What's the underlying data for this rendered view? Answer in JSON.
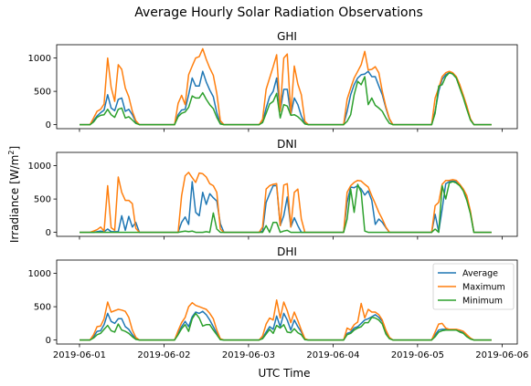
{
  "figure": {
    "title": "Average Hourly Solar Radiation Observations",
    "xlabel": "UTC Time",
    "ylabel": "Irradiance [W/m",
    "ylabel_sup": "2",
    "ylabel_close": "]"
  },
  "chart_data": [
    {
      "type": "line",
      "title": "GHI",
      "x_start": "2019-06-01",
      "x_step_hours": 1,
      "xlim": [
        "2019-06-01",
        "2019-06-06"
      ],
      "ylim": [
        0,
        1200
      ],
      "yticks": [
        0,
        500,
        1000
      ],
      "xticks": [
        "2019-06-01",
        "2019-06-02",
        "2019-06-03",
        "2019-06-04",
        "2019-06-05",
        "2019-06-06"
      ],
      "series": [
        {
          "name": "Average",
          "color": "#1f77b4",
          "values": [
            0,
            0,
            0,
            0,
            60,
            130,
            180,
            220,
            450,
            250,
            210,
            380,
            400,
            200,
            230,
            150,
            40,
            0,
            0,
            0,
            0,
            0,
            0,
            0,
            0,
            0,
            0,
            0,
            150,
            220,
            230,
            450,
            700,
            580,
            580,
            800,
            640,
            520,
            420,
            180,
            20,
            0,
            0,
            0,
            0,
            0,
            0,
            0,
            0,
            0,
            0,
            0,
            40,
            250,
            420,
            500,
            700,
            200,
            530,
            530,
            150,
            400,
            300,
            130,
            20,
            0,
            0,
            0,
            0,
            0,
            0,
            0,
            0,
            0,
            0,
            0,
            200,
            450,
            600,
            700,
            750,
            760,
            800,
            720,
            720,
            580,
            450,
            250,
            80,
            0,
            0,
            0,
            0,
            0,
            0,
            0,
            0,
            0,
            0,
            0,
            0,
            200,
            500,
            680,
            750,
            780,
            760,
            700,
            560,
            420,
            250,
            80,
            0,
            0,
            0,
            0,
            0,
            0
          ]
        },
        {
          "name": "Maximum",
          "color": "#ff7f0e",
          "values": [
            0,
            0,
            0,
            0,
            100,
            200,
            230,
            310,
            1000,
            560,
            350,
            900,
            830,
            550,
            420,
            200,
            60,
            0,
            0,
            0,
            0,
            0,
            0,
            0,
            0,
            0,
            0,
            0,
            320,
            440,
            300,
            750,
            880,
            1000,
            1020,
            1140,
            980,
            850,
            740,
            470,
            60,
            0,
            0,
            0,
            0,
            0,
            0,
            0,
            0,
            0,
            0,
            0,
            80,
            530,
            700,
            870,
            1050,
            200,
            1000,
            1060,
            160,
            880,
            610,
            450,
            50,
            0,
            0,
            0,
            0,
            0,
            0,
            0,
            0,
            0,
            0,
            0,
            380,
            550,
            700,
            800,
            900,
            1100,
            820,
            830,
            870,
            780,
            500,
            270,
            90,
            0,
            0,
            0,
            0,
            0,
            0,
            0,
            0,
            0,
            0,
            0,
            0,
            400,
            550,
            720,
            780,
            800,
            780,
            720,
            600,
            440,
            280,
            90,
            0,
            0,
            0,
            0,
            0,
            0
          ]
        },
        {
          "name": "Minimum",
          "color": "#2ca02c",
          "values": [
            0,
            0,
            0,
            0,
            40,
            110,
            140,
            150,
            230,
            150,
            110,
            230,
            250,
            100,
            120,
            70,
            20,
            0,
            0,
            0,
            0,
            0,
            0,
            0,
            0,
            0,
            0,
            0,
            120,
            170,
            190,
            260,
            430,
            400,
            400,
            480,
            380,
            300,
            240,
            110,
            10,
            0,
            0,
            0,
            0,
            0,
            0,
            0,
            0,
            0,
            0,
            0,
            30,
            170,
            310,
            350,
            470,
            100,
            300,
            280,
            140,
            150,
            120,
            70,
            10,
            0,
            0,
            0,
            0,
            0,
            0,
            0,
            0,
            0,
            0,
            0,
            50,
            150,
            450,
            650,
            600,
            720,
            300,
            400,
            290,
            250,
            200,
            100,
            20,
            0,
            0,
            0,
            0,
            0,
            0,
            0,
            0,
            0,
            0,
            0,
            0,
            170,
            580,
            600,
            720,
            780,
            760,
            700,
            550,
            400,
            230,
            70,
            0,
            0,
            0,
            0,
            0,
            0
          ]
        }
      ]
    },
    {
      "type": "line",
      "title": "DNI",
      "x_start": "2019-06-01",
      "x_step_hours": 1,
      "xlim": [
        "2019-06-01",
        "2019-06-06"
      ],
      "ylim": [
        0,
        1200
      ],
      "yticks": [
        0,
        500,
        1000
      ],
      "xticks": [
        "2019-06-01",
        "2019-06-02",
        "2019-06-03",
        "2019-06-04",
        "2019-06-05",
        "2019-06-06"
      ],
      "series": [
        {
          "name": "Average",
          "color": "#1f77b4",
          "values": [
            0,
            0,
            0,
            0,
            0,
            10,
            20,
            10,
            50,
            10,
            10,
            10,
            250,
            30,
            240,
            80,
            150,
            0,
            0,
            0,
            0,
            0,
            0,
            0,
            0,
            0,
            0,
            0,
            0,
            150,
            230,
            120,
            760,
            300,
            250,
            600,
            420,
            580,
            520,
            470,
            130,
            0,
            0,
            0,
            0,
            0,
            0,
            0,
            0,
            0,
            0,
            0,
            20,
            450,
            580,
            700,
            700,
            100,
            250,
            530,
            80,
            220,
            100,
            0,
            0,
            0,
            0,
            0,
            0,
            0,
            0,
            0,
            0,
            0,
            0,
            0,
            450,
            680,
            670,
            700,
            650,
            560,
            620,
            480,
            120,
            200,
            150,
            70,
            0,
            0,
            0,
            0,
            0,
            0,
            0,
            0,
            0,
            0,
            0,
            0,
            0,
            270,
            10,
            350,
            730,
            760,
            770,
            760,
            700,
            630,
            490,
            300,
            0,
            0,
            0,
            0,
            0,
            0
          ]
        },
        {
          "name": "Maximum",
          "color": "#ff7f0e",
          "values": [
            0,
            0,
            0,
            0,
            20,
            40,
            80,
            20,
            700,
            70,
            30,
            830,
            600,
            480,
            480,
            430,
            60,
            0,
            0,
            0,
            0,
            0,
            0,
            0,
            0,
            0,
            0,
            0,
            0,
            550,
            850,
            900,
            820,
            750,
            890,
            880,
            830,
            730,
            700,
            600,
            50,
            0,
            0,
            0,
            0,
            0,
            0,
            0,
            0,
            0,
            0,
            0,
            80,
            650,
            700,
            720,
            730,
            100,
            710,
            730,
            80,
            600,
            650,
            200,
            0,
            0,
            0,
            0,
            0,
            0,
            0,
            0,
            0,
            0,
            0,
            0,
            600,
            700,
            750,
            780,
            770,
            720,
            680,
            550,
            430,
            300,
            200,
            80,
            0,
            0,
            0,
            0,
            0,
            0,
            0,
            0,
            0,
            0,
            0,
            0,
            0,
            400,
            450,
            720,
            780,
            780,
            790,
            780,
            720,
            650,
            550,
            320,
            0,
            0,
            0,
            0,
            0,
            0
          ]
        },
        {
          "name": "Minimum",
          "color": "#2ca02c",
          "values": [
            0,
            0,
            0,
            0,
            0,
            0,
            0,
            0,
            0,
            0,
            0,
            0,
            0,
            0,
            0,
            0,
            0,
            0,
            0,
            0,
            0,
            0,
            0,
            0,
            0,
            0,
            0,
            0,
            0,
            10,
            20,
            10,
            20,
            0,
            0,
            0,
            10,
            0,
            290,
            50,
            0,
            0,
            0,
            0,
            0,
            0,
            0,
            0,
            0,
            0,
            0,
            0,
            0,
            100,
            0,
            150,
            150,
            0,
            20,
            30,
            0,
            0,
            0,
            0,
            0,
            0,
            0,
            0,
            0,
            0,
            0,
            0,
            0,
            0,
            0,
            0,
            200,
            650,
            300,
            720,
            600,
            20,
            0,
            0,
            0,
            0,
            0,
            0,
            0,
            0,
            0,
            0,
            0,
            0,
            0,
            0,
            0,
            0,
            0,
            0,
            0,
            50,
            0,
            700,
            500,
            740,
            760,
            740,
            700,
            620,
            480,
            280,
            0,
            0,
            0,
            0,
            0,
            0
          ]
        }
      ]
    },
    {
      "type": "line",
      "title": "DHI",
      "x_start": "2019-06-01",
      "x_step_hours": 1,
      "xlim": [
        "2019-06-01",
        "2019-06-06"
      ],
      "ylim": [
        0,
        1200
      ],
      "yticks": [
        0,
        500,
        1000
      ],
      "xticks": [
        "2019-06-01",
        "2019-06-02",
        "2019-06-03",
        "2019-06-04",
        "2019-06-05",
        "2019-06-06"
      ],
      "series": [
        {
          "name": "Average",
          "color": "#1f77b4",
          "values": [
            0,
            0,
            0,
            0,
            50,
            130,
            140,
            230,
            400,
            280,
            250,
            320,
            320,
            200,
            160,
            80,
            20,
            0,
            0,
            0,
            0,
            0,
            0,
            0,
            0,
            0,
            0,
            0,
            100,
            200,
            280,
            200,
            350,
            420,
            400,
            430,
            380,
            300,
            200,
            100,
            10,
            0,
            0,
            0,
            0,
            0,
            0,
            0,
            0,
            0,
            0,
            0,
            30,
            120,
            200,
            160,
            360,
            200,
            400,
            300,
            150,
            300,
            200,
            120,
            10,
            0,
            0,
            0,
            0,
            0,
            0,
            0,
            0,
            0,
            0,
            0,
            100,
            120,
            180,
            200,
            250,
            300,
            320,
            350,
            380,
            340,
            280,
            120,
            30,
            0,
            0,
            0,
            0,
            0,
            0,
            0,
            0,
            0,
            0,
            0,
            0,
            80,
            150,
            160,
            160,
            150,
            150,
            150,
            130,
            110,
            60,
            20,
            0,
            0,
            0,
            0,
            0,
            0
          ]
        },
        {
          "name": "Maximum",
          "color": "#ff7f0e",
          "values": [
            0,
            0,
            0,
            0,
            80,
            200,
            210,
            320,
            570,
            420,
            440,
            460,
            450,
            430,
            340,
            150,
            40,
            0,
            0,
            0,
            0,
            0,
            0,
            0,
            0,
            0,
            0,
            0,
            140,
            260,
            340,
            500,
            560,
            520,
            500,
            480,
            460,
            400,
            320,
            150,
            20,
            0,
            0,
            0,
            0,
            0,
            0,
            0,
            0,
            0,
            0,
            0,
            60,
            240,
            330,
            300,
            600,
            330,
            570,
            440,
            260,
            420,
            290,
            150,
            20,
            0,
            0,
            0,
            0,
            0,
            0,
            0,
            0,
            0,
            0,
            0,
            180,
            150,
            230,
            270,
            550,
            330,
            460,
            420,
            420,
            380,
            300,
            150,
            40,
            0,
            0,
            0,
            0,
            0,
            0,
            0,
            0,
            0,
            0,
            0,
            0,
            120,
            240,
            250,
            180,
            160,
            160,
            160,
            150,
            130,
            80,
            30,
            0,
            0,
            0,
            0,
            0,
            0
          ]
        },
        {
          "name": "Minimum",
          "color": "#2ca02c",
          "values": [
            0,
            0,
            0,
            0,
            30,
            80,
            100,
            160,
            220,
            140,
            120,
            240,
            150,
            130,
            100,
            50,
            10,
            0,
            0,
            0,
            0,
            0,
            0,
            0,
            0,
            0,
            0,
            0,
            80,
            170,
            230,
            130,
            320,
            400,
            330,
            210,
            230,
            230,
            150,
            80,
            5,
            0,
            0,
            0,
            0,
            0,
            0,
            0,
            0,
            0,
            0,
            0,
            20,
            90,
            160,
            100,
            220,
            180,
            230,
            120,
            110,
            170,
            110,
            80,
            5,
            0,
            0,
            0,
            0,
            0,
            0,
            0,
            0,
            0,
            0,
            0,
            80,
            100,
            150,
            180,
            200,
            260,
            260,
            340,
            330,
            300,
            240,
            90,
            20,
            0,
            0,
            0,
            0,
            0,
            0,
            0,
            0,
            0,
            0,
            0,
            0,
            50,
            120,
            140,
            150,
            150,
            150,
            150,
            120,
            100,
            50,
            15,
            0,
            0,
            0,
            0,
            0,
            0
          ]
        }
      ],
      "legend": {
        "placement": "upper right",
        "entries": [
          "Average",
          "Maximum",
          "Minimum"
        ]
      }
    }
  ]
}
